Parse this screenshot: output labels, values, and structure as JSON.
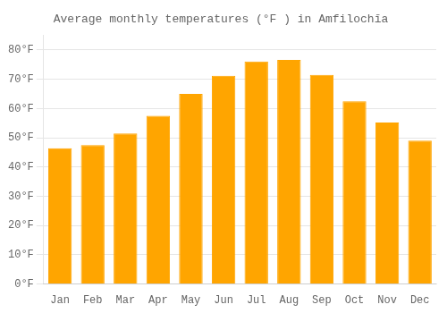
{
  "chart_data": {
    "type": "bar",
    "title": "Average monthly temperatures (°F ) in Amfilochīa",
    "categories": [
      "Jan",
      "Feb",
      "Mar",
      "Apr",
      "May",
      "Jun",
      "Jul",
      "Aug",
      "Sep",
      "Oct",
      "Nov",
      "Dec"
    ],
    "values": [
      46.4,
      47.5,
      51.5,
      57.5,
      65.0,
      71.2,
      76.1,
      76.6,
      71.5,
      62.5,
      55.2,
      49.0
    ],
    "color": "#FFA500",
    "ylim": [
      0,
      85
    ],
    "yticks": [
      {
        "value": 0,
        "label": "0°F"
      },
      {
        "value": 10,
        "label": "10°F"
      },
      {
        "value": 20,
        "label": "20°F"
      },
      {
        "value": 30,
        "label": "30°F"
      },
      {
        "value": 40,
        "label": "40°F"
      },
      {
        "value": 50,
        "label": "50°F"
      },
      {
        "value": 60,
        "label": "60°F"
      },
      {
        "value": 70,
        "label": "70°F"
      },
      {
        "value": 80,
        "label": "80°F"
      }
    ],
    "grid": true
  }
}
